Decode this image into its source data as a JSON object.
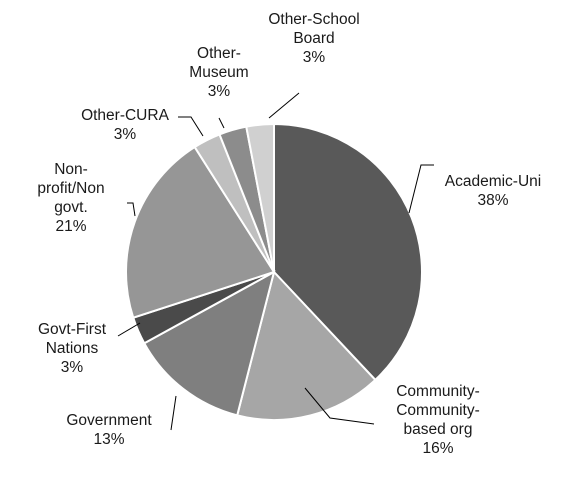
{
  "chart_data": {
    "type": "pie",
    "title": "",
    "start": "12 o'clock, clockwise",
    "slices": [
      {
        "name": "Academic-Uni",
        "label_lines": [
          "Academic-Uni"
        ],
        "value": 38,
        "pct_label": "38%",
        "color": "#595959"
      },
      {
        "name": "Community-Community-based org",
        "label_lines": [
          "Community-",
          "Community-",
          "based org"
        ],
        "value": 16,
        "pct_label": "16%",
        "color": "#a6a6a6"
      },
      {
        "name": "Government",
        "label_lines": [
          "Government"
        ],
        "value": 13,
        "pct_label": "13%",
        "color": "#7f7f7f"
      },
      {
        "name": "Govt-First Nations",
        "label_lines": [
          "Govt-First",
          "Nations"
        ],
        "value": 3,
        "pct_label": "3%",
        "color": "#4a4a4a"
      },
      {
        "name": "Non-profit/Non govt.",
        "label_lines": [
          "Non-",
          "profit/Non",
          "govt."
        ],
        "value": 21,
        "pct_label": "21%",
        "color": "#969696"
      },
      {
        "name": "Other-CURA",
        "label_lines": [
          "Other-CURA"
        ],
        "value": 3,
        "pct_label": "3%",
        "color": "#bfbfbf"
      },
      {
        "name": "Other-Museum",
        "label_lines": [
          "Other-",
          "Museum"
        ],
        "value": 3,
        "pct_label": "3%",
        "color": "#8c8c8c"
      },
      {
        "name": "Other-School Board",
        "label_lines": [
          "Other-School",
          "Board"
        ],
        "value": 3,
        "pct_label": "3%",
        "color": "#d0d0d0"
      }
    ]
  }
}
